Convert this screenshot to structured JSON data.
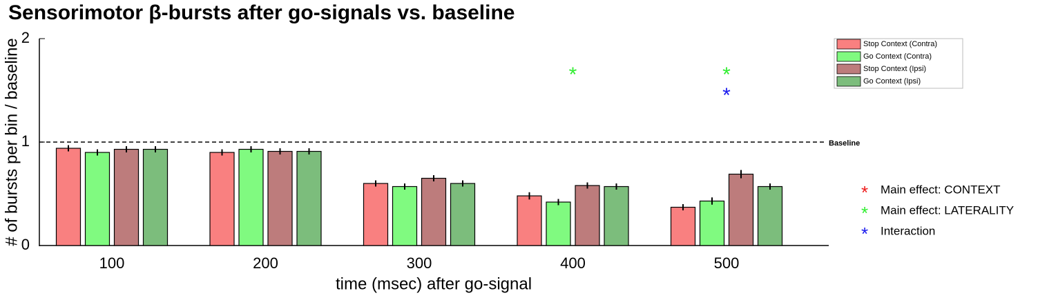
{
  "chart_data": {
    "type": "bar",
    "title": "Sensorimotor β-bursts after go-signals vs. baseline",
    "x_label": "time (msec) after go-signal",
    "y_label": "# of bursts per bin / baseline",
    "categories": [
      "100",
      "200",
      "300",
      "400",
      "500"
    ],
    "series": [
      {
        "name": "Stop Context (Contra)",
        "color": "#f98080",
        "values": [
          0.94,
          0.9,
          0.6,
          0.48,
          0.37
        ],
        "errors": [
          0.03,
          0.03,
          0.03,
          0.035,
          0.03
        ]
      },
      {
        "name": "Go Context (Contra)",
        "color": "#80fa80",
        "values": [
          0.9,
          0.93,
          0.57,
          0.42,
          0.43
        ],
        "errors": [
          0.03,
          0.03,
          0.03,
          0.03,
          0.035
        ]
      },
      {
        "name": "Stop Context (Ipsi)",
        "color": "#bd7c7c",
        "values": [
          0.93,
          0.91,
          0.65,
          0.58,
          0.69
        ],
        "errors": [
          0.03,
          0.03,
          0.03,
          0.03,
          0.04
        ]
      },
      {
        "name": "Go Context (Ipsi)",
        "color": "#7cbd7c",
        "values": [
          0.93,
          0.91,
          0.6,
          0.57,
          0.57
        ],
        "errors": [
          0.03,
          0.03,
          0.03,
          0.03,
          0.03
        ]
      }
    ],
    "ylim": [
      0,
      2
    ],
    "yticks": [
      0,
      1,
      2
    ],
    "baseline": {
      "value": 1,
      "label": "Baseline"
    },
    "annotations": [
      {
        "text": "*",
        "color": "#33ee33",
        "category": 3,
        "y": 1.68
      },
      {
        "text": "*",
        "color": "#33ee33",
        "category": 4,
        "y": 1.68
      },
      {
        "text": "*",
        "color": "#1a1aee",
        "category": 4,
        "y": 1.48
      }
    ],
    "significance_legend": [
      {
        "marker": "*",
        "color": "#ee1a1a",
        "label": "Main effect: CONTEXT"
      },
      {
        "marker": "*",
        "color": "#33ee33",
        "label": "Main effect: LATERALITY"
      },
      {
        "marker": "*",
        "color": "#1a1aee",
        "label": "Interaction"
      }
    ]
  }
}
